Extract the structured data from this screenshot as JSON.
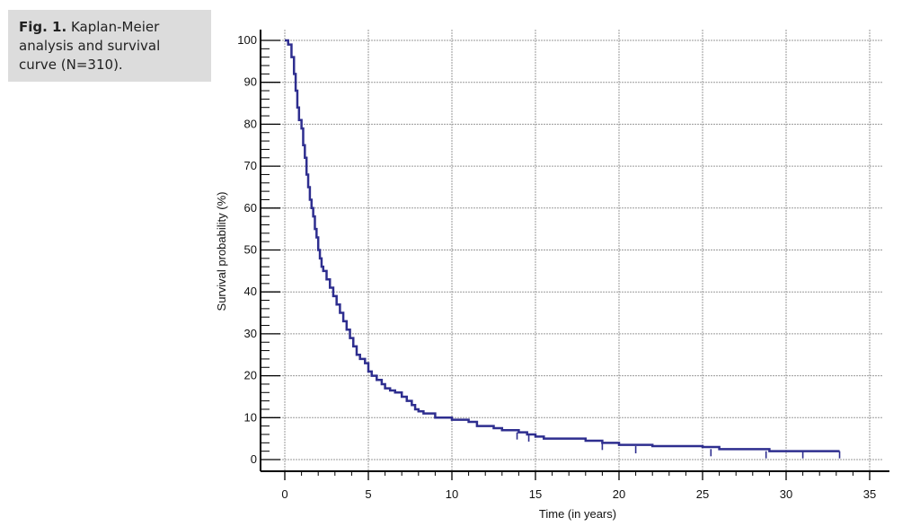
{
  "caption": {
    "label": "Fig. 1.",
    "text": " Kaplan-Meier analysis and survival curve (N=310)."
  },
  "chart_data": {
    "type": "line",
    "xlabel": "Time (in years)",
    "ylabel": "Survival probability (%)",
    "xlim": [
      0,
      35
    ],
    "ylim": [
      0,
      100
    ],
    "xticks": [
      0,
      5,
      10,
      15,
      20,
      25,
      30,
      35
    ],
    "yticks": [
      0,
      10,
      20,
      30,
      40,
      50,
      60,
      70,
      80,
      90,
      100
    ],
    "grid": true,
    "line_color": "#2e2e8f",
    "series": [
      {
        "step": true,
        "points": [
          [
            0,
            100
          ],
          [
            0.2,
            99
          ],
          [
            0.4,
            96
          ],
          [
            0.55,
            92
          ],
          [
            0.65,
            88
          ],
          [
            0.75,
            84
          ],
          [
            0.85,
            81
          ],
          [
            1.0,
            79
          ],
          [
            1.1,
            75
          ],
          [
            1.2,
            72
          ],
          [
            1.3,
            68
          ],
          [
            1.4,
            65
          ],
          [
            1.5,
            62
          ],
          [
            1.6,
            60
          ],
          [
            1.7,
            58
          ],
          [
            1.8,
            55
          ],
          [
            1.9,
            53
          ],
          [
            2.0,
            50
          ],
          [
            2.1,
            48
          ],
          [
            2.2,
            46
          ],
          [
            2.3,
            45
          ],
          [
            2.5,
            43
          ],
          [
            2.7,
            41
          ],
          [
            2.9,
            39
          ],
          [
            3.1,
            37
          ],
          [
            3.3,
            35
          ],
          [
            3.5,
            33
          ],
          [
            3.7,
            31
          ],
          [
            3.9,
            29
          ],
          [
            4.1,
            27
          ],
          [
            4.3,
            25
          ],
          [
            4.5,
            24
          ],
          [
            4.8,
            23
          ],
          [
            5.0,
            21
          ],
          [
            5.2,
            20
          ],
          [
            5.5,
            19
          ],
          [
            5.8,
            18
          ],
          [
            6.0,
            17
          ],
          [
            6.3,
            16.5
          ],
          [
            6.6,
            16
          ],
          [
            7.0,
            15
          ],
          [
            7.3,
            14
          ],
          [
            7.6,
            13
          ],
          [
            7.8,
            12
          ],
          [
            8.0,
            11.5
          ],
          [
            8.3,
            11
          ],
          [
            9.0,
            10
          ],
          [
            10.0,
            9.5
          ],
          [
            11.0,
            9
          ],
          [
            11.5,
            8
          ],
          [
            12.5,
            7.5
          ],
          [
            13.0,
            7
          ],
          [
            14.0,
            6.5
          ],
          [
            14.5,
            6
          ],
          [
            15.0,
            5.5
          ],
          [
            15.5,
            5
          ],
          [
            17.0,
            5
          ],
          [
            18.0,
            4.5
          ],
          [
            19.0,
            4
          ],
          [
            20.0,
            3.5
          ],
          [
            22.0,
            3.2
          ],
          [
            25.0,
            3
          ],
          [
            26.0,
            2.5
          ],
          [
            28.5,
            2.5
          ],
          [
            29.0,
            2
          ],
          [
            33.2,
            2
          ]
        ],
        "censored": [
          [
            13.9,
            6.5
          ],
          [
            14.6,
            6
          ],
          [
            19.0,
            4
          ],
          [
            21.0,
            3.2
          ],
          [
            25.5,
            2.5
          ],
          [
            28.8,
            2
          ],
          [
            31.0,
            2
          ],
          [
            33.2,
            2
          ]
        ]
      }
    ]
  }
}
